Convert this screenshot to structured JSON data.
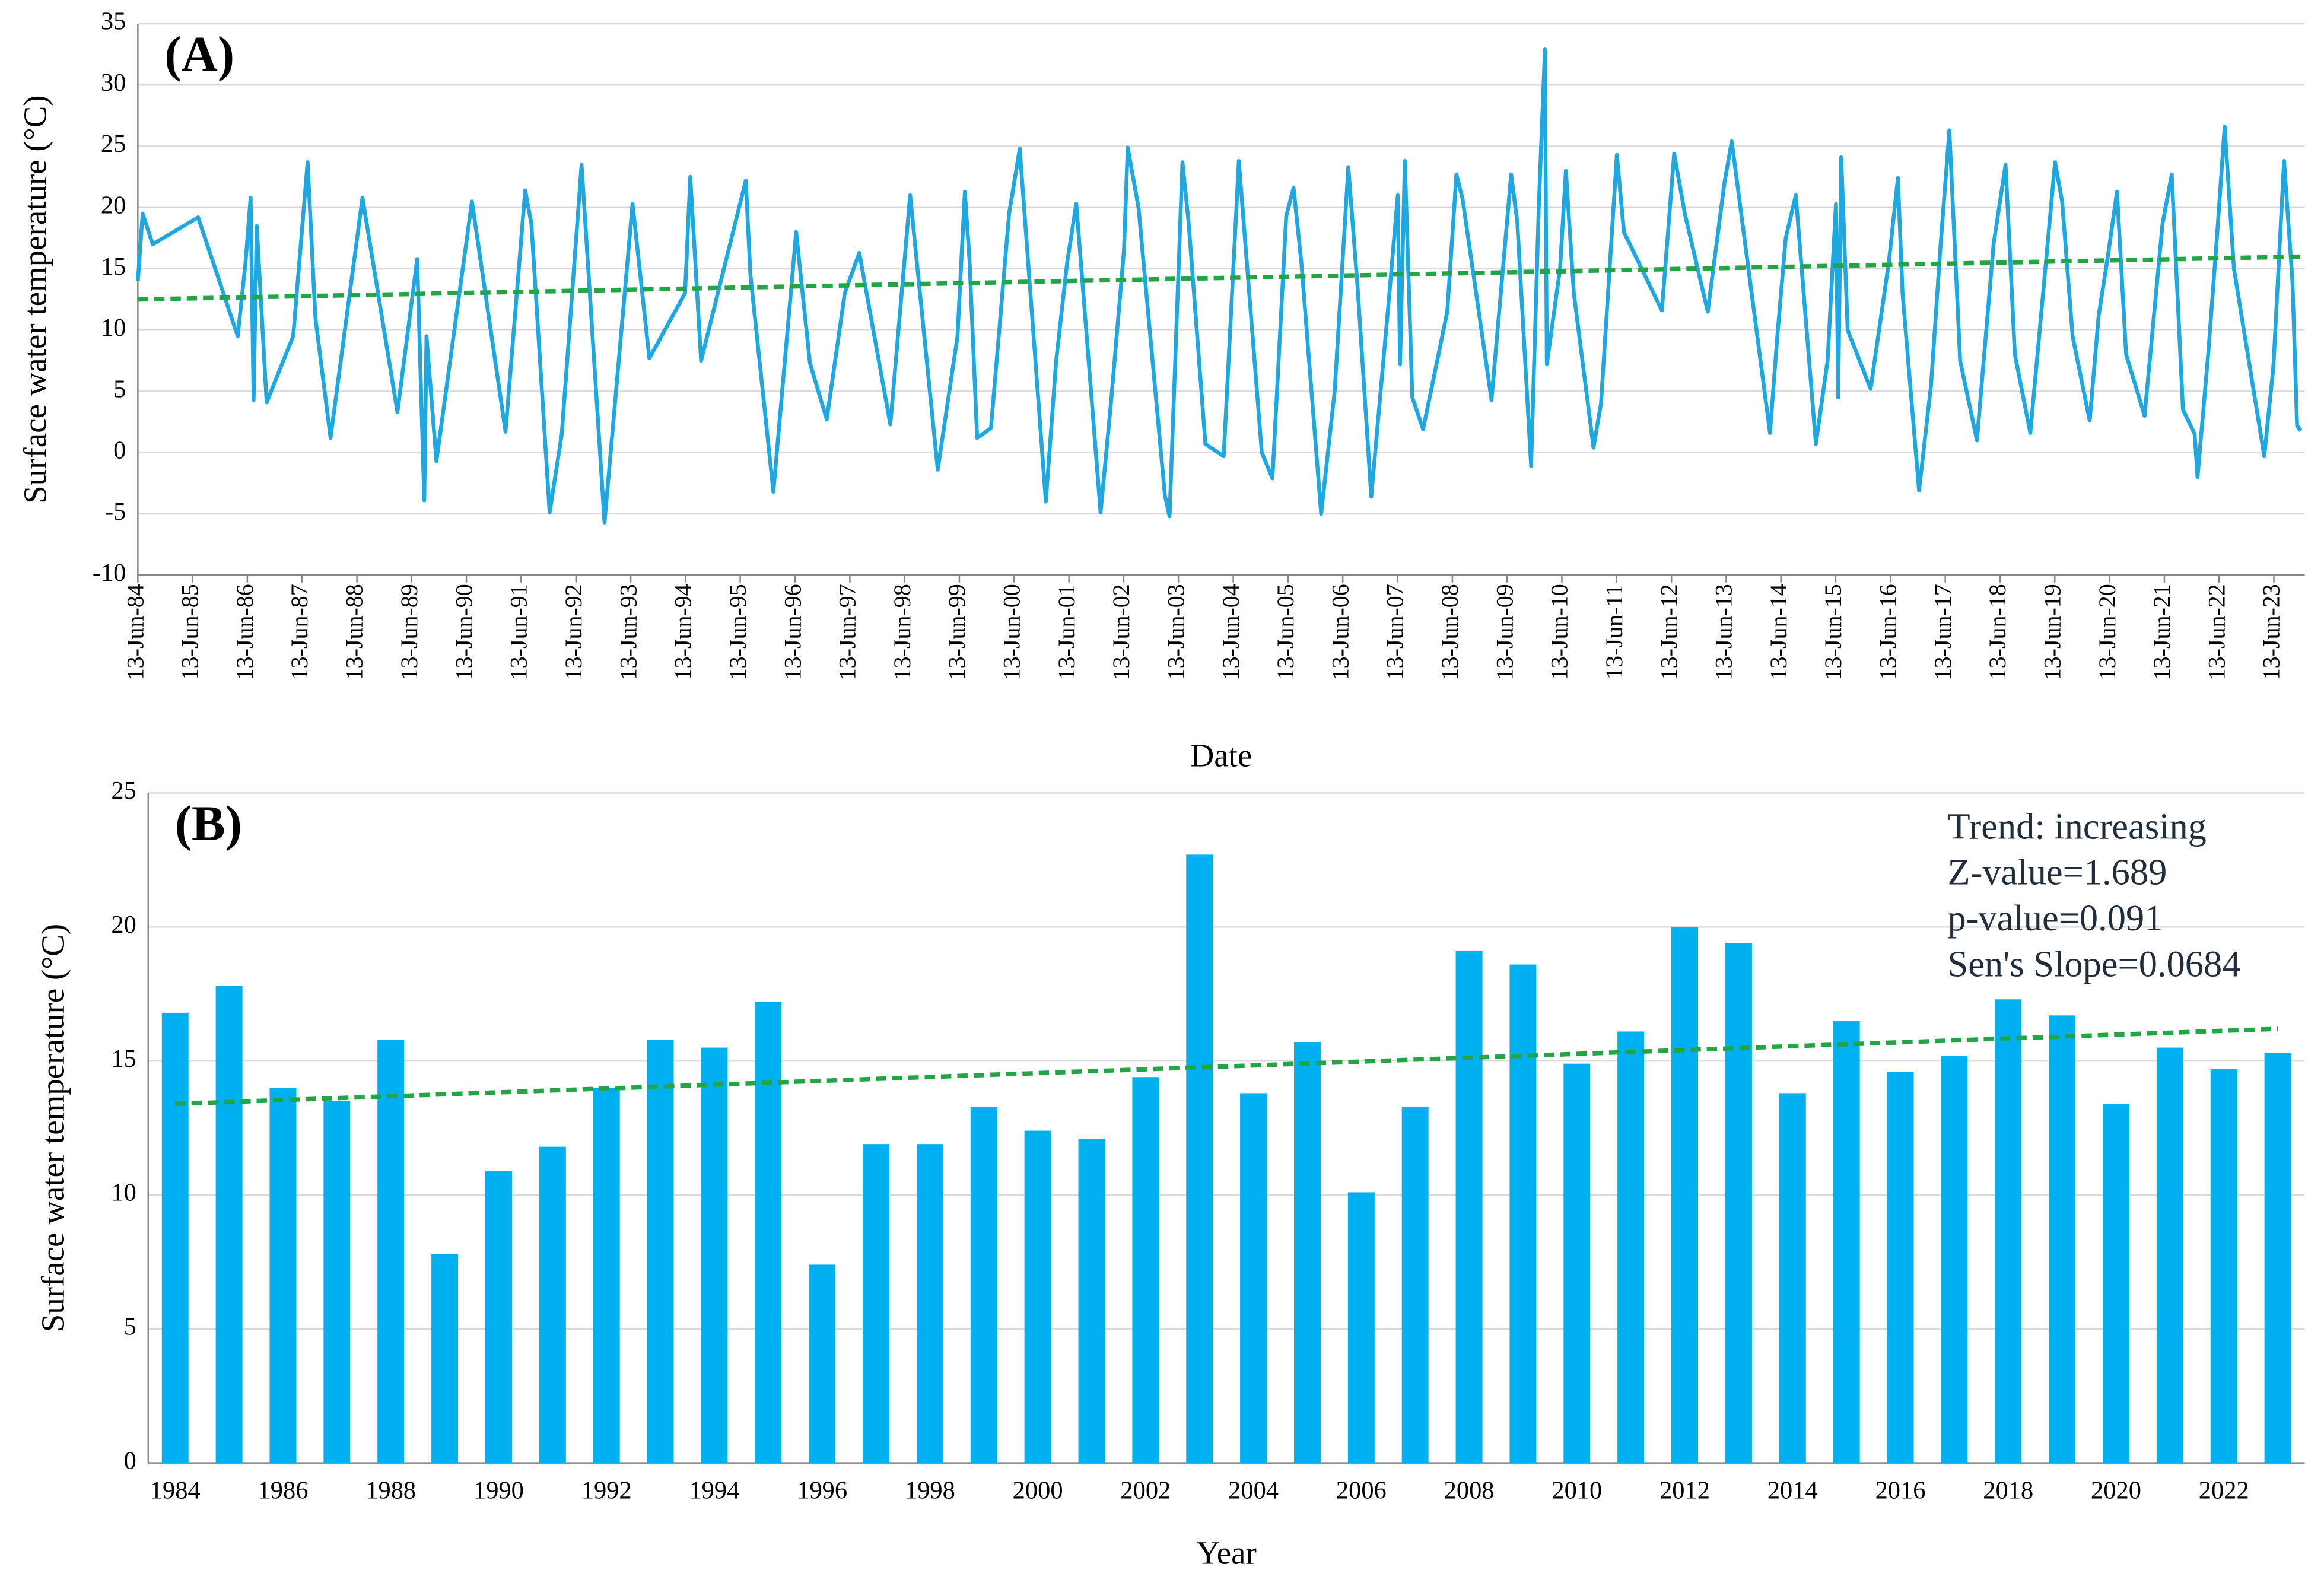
{
  "chart_data": [
    {
      "type": "line",
      "panel_label": "(A)",
      "x_label": "Date",
      "y_label": "Surface water temperature (°C)",
      "x": [
        "1984-06-13",
        "1984-07-15",
        "1984-09-20",
        "1985-07-20",
        "1986-04-10",
        "1986-06-01",
        "1986-07-05",
        "1986-07-25",
        "1986-08-15",
        "1986-10-20",
        "1987-04-15",
        "1987-07-20",
        "1987-09-10",
        "1987-12-20",
        "1988-07-20",
        "1989-03-10",
        "1989-07-20",
        "1989-09-05",
        "1989-09-20",
        "1989-11-25",
        "1990-07-20",
        "1991-03-01",
        "1991-07-10",
        "1991-08-20",
        "1991-12-20",
        "1992-03-10",
        "1992-07-20",
        "1992-12-20",
        "1993-06-25",
        "1993-10-15",
        "1994-06-10",
        "1994-07-15",
        "1994-09-25",
        "1995-07-20",
        "1995-08-20",
        "1996-01-20",
        "1996-06-20",
        "1996-09-20",
        "1997-01-10",
        "1997-05-10",
        "1997-08-15",
        "1998-03-10",
        "1998-07-20",
        "1999-01-20",
        "1999-06-01",
        "1999-07-20",
        "1999-08-20",
        "1999-10-10",
        "2000-01-10",
        "2000-05-10",
        "2000-07-20",
        "2001-01-10",
        "2001-03-20",
        "2001-06-01",
        "2001-08-01",
        "2002-01-10",
        "2002-03-20",
        "2002-06-15",
        "2002-07-10",
        "2002-09-20",
        "2003-03-15",
        "2003-04-15",
        "2003-07-10",
        "2003-08-20",
        "2003-12-10",
        "2004-04-10",
        "2004-07-20",
        "2004-12-20",
        "2005-03-01",
        "2005-06-01",
        "2005-07-20",
        "2005-09-10",
        "2006-01-20",
        "2006-04-20",
        "2006-07-20",
        "2006-09-20",
        "2006-12-20",
        "2007-04-20",
        "2007-06-15",
        "2007-06-30",
        "2007-08-01",
        "2007-09-20",
        "2007-12-01",
        "2008-05-10",
        "2008-07-10",
        "2008-08-20",
        "2009-03-01",
        "2009-07-10",
        "2009-08-20",
        "2009-11-20",
        "2010-01-10",
        "2010-02-20",
        "2010-03-05",
        "2010-06-01",
        "2010-07-10",
        "2010-09-01",
        "2011-01-10",
        "2011-03-01",
        "2011-06-15",
        "2011-08-01",
        "2012-04-10",
        "2012-07-01",
        "2012-09-10",
        "2013-02-10",
        "2013-06-01",
        "2013-07-20",
        "2014-04-01",
        "2014-05-20",
        "2014-07-15",
        "2014-09-20",
        "2015-02-01",
        "2015-04-20",
        "2015-06-15",
        "2015-06-30",
        "2015-07-20",
        "2015-09-01",
        "2016-02-01",
        "2016-06-01",
        "2016-08-01",
        "2016-09-01",
        "2016-12-20",
        "2017-03-10",
        "2017-05-10",
        "2017-07-10",
        "2017-09-20",
        "2018-01-10",
        "2018-05-01",
        "2018-07-20",
        "2018-09-20",
        "2019-01-01",
        "2019-06-15",
        "2019-08-01",
        "2019-10-10",
        "2020-02-01",
        "2020-04-01",
        "2020-06-01",
        "2020-08-01",
        "2020-10-01",
        "2021-02-01",
        "2021-06-01",
        "2021-08-01",
        "2021-10-15",
        "2022-01-01",
        "2022-01-20",
        "2022-04-01",
        "2022-06-01",
        "2022-07-20",
        "2022-09-20",
        "2023-04-10",
        "2023-06-10",
        "2023-08-20",
        "2023-10-15",
        "2023-11-15",
        "2023-12-10"
      ],
      "series": [
        {
          "color": "#1ea7e1",
          "values": [
            14,
            19.5,
            17,
            19.2,
            9.5,
            15.5,
            20.8,
            4.3,
            18.5,
            4.1,
            9.5,
            23.7,
            11,
            1.2,
            20.8,
            3.3,
            15.8,
            -3.9,
            9.5,
            -0.7,
            20.5,
            1.7,
            21.4,
            18.7,
            -4.9,
            1.5,
            23.5,
            -5.7,
            20.3,
            7.7,
            13,
            22.5,
            7.5,
            22.2,
            14.5,
            -3.2,
            18,
            7.3,
            2.7,
            13,
            16.3,
            2.3,
            21,
            -1.4,
            9.5,
            21.3,
            15.7,
            1.2,
            2,
            19.5,
            24.8,
            -4,
            7.5,
            15.5,
            20.3,
            -4.9,
            4,
            16.5,
            24.9,
            20,
            -3.5,
            -5.2,
            23.7,
            18.8,
            0.7,
            -0.3,
            23.8,
            0,
            -2.1,
            19.3,
            21.6,
            15.5,
            -5,
            5,
            23.3,
            13.5,
            -3.6,
            13,
            21,
            7.2,
            23.8,
            4.5,
            1.9,
            11.5,
            22.7,
            20.7,
            4.3,
            22.7,
            18.8,
            -1.1,
            20,
            32.9,
            7.2,
            15,
            23,
            13,
            0.4,
            4,
            24.3,
            18,
            11.6,
            24.4,
            19.5,
            11.5,
            22,
            25.4,
            1.6,
            9.5,
            17.5,
            21,
            0.7,
            7.5,
            20.3,
            4.5,
            24.1,
            10,
            5.2,
            15.5,
            22.4,
            13,
            -3.1,
            5.5,
            16.5,
            26.3,
            7.5,
            1,
            17,
            23.5,
            8,
            1.6,
            23.7,
            20.5,
            9.5,
            2.6,
            11.2,
            16,
            21.3,
            8,
            3,
            18.7,
            22.7,
            3.5,
            1.5,
            -2,
            8,
            18,
            26.6,
            15,
            -0.3,
            7,
            23.8,
            14,
            2.2,
            1.8
          ]
        }
      ],
      "trend": {
        "color": "#22a645",
        "x": [
          "1984-06-13",
          "2024-01-05"
        ],
        "values": [
          12.5,
          16
        ]
      },
      "xlim": [
        "1984-06-13",
        "2024-01-05"
      ],
      "xticks": [
        {
          "value": "1984-06-13",
          "label": "13-Jun-84"
        },
        {
          "value": "1985-06-13",
          "label": "13-Jun-85"
        },
        {
          "value": "1986-06-13",
          "label": "13-Jun-86"
        },
        {
          "value": "1987-06-13",
          "label": "13-Jun-87"
        },
        {
          "value": "1988-06-13",
          "label": "13-Jun-88"
        },
        {
          "value": "1989-06-13",
          "label": "13-Jun-89"
        },
        {
          "value": "1990-06-13",
          "label": "13-Jun-90"
        },
        {
          "value": "1991-06-13",
          "label": "13-Jun-91"
        },
        {
          "value": "1992-06-13",
          "label": "13-Jun-92"
        },
        {
          "value": "1993-06-13",
          "label": "13-Jun-93"
        },
        {
          "value": "1994-06-13",
          "label": "13-Jun-94"
        },
        {
          "value": "1995-06-13",
          "label": "13-Jun-95"
        },
        {
          "value": "1996-06-13",
          "label": "13-Jun-96"
        },
        {
          "value": "1997-06-13",
          "label": "13-Jun-97"
        },
        {
          "value": "1998-06-13",
          "label": "13-Jun-98"
        },
        {
          "value": "1999-06-13",
          "label": "13-Jun-99"
        },
        {
          "value": "2000-06-13",
          "label": "13-Jun-00"
        },
        {
          "value": "2001-06-13",
          "label": "13-Jun-01"
        },
        {
          "value": "2002-06-13",
          "label": "13-Jun-02"
        },
        {
          "value": "2003-06-13",
          "label": "13-Jun-03"
        },
        {
          "value": "2004-06-13",
          "label": "13-Jun-04"
        },
        {
          "value": "2005-06-13",
          "label": "13-Jun-05"
        },
        {
          "value": "2006-06-13",
          "label": "13-Jun-06"
        },
        {
          "value": "2007-06-13",
          "label": "13-Jun-07"
        },
        {
          "value": "2008-06-13",
          "label": "13-Jun-08"
        },
        {
          "value": "2009-06-13",
          "label": "13-Jun-09"
        },
        {
          "value": "2010-06-13",
          "label": "13-Jun-10"
        },
        {
          "value": "2011-06-13",
          "label": "13-Jun-11"
        },
        {
          "value": "2012-06-13",
          "label": "13-Jun-12"
        },
        {
          "value": "2013-06-13",
          "label": "13-Jun-13"
        },
        {
          "value": "2014-06-13",
          "label": "13-Jun-14"
        },
        {
          "value": "2015-06-13",
          "label": "13-Jun-15"
        },
        {
          "value": "2016-06-13",
          "label": "13-Jun-16"
        },
        {
          "value": "2017-06-13",
          "label": "13-Jun-17"
        },
        {
          "value": "2018-06-13",
          "label": "13-Jun-18"
        },
        {
          "value": "2019-06-13",
          "label": "13-Jun-19"
        },
        {
          "value": "2020-06-13",
          "label": "13-Jun-20"
        },
        {
          "value": "2021-06-13",
          "label": "13-Jun-21"
        },
        {
          "value": "2022-06-13",
          "label": "13-Jun-22"
        },
        {
          "value": "2023-06-13",
          "label": "13-Jun-23"
        }
      ],
      "ylim": [
        -10,
        35
      ],
      "yticks": [
        -10,
        -5,
        0,
        5,
        10,
        15,
        20,
        25,
        30,
        35
      ],
      "grid": true
    },
    {
      "type": "bar",
      "panel_label": "(B)",
      "x_label": "Year",
      "y_label": "Surface water temperature (°C)",
      "categories": [
        "1984",
        null,
        "1986",
        null,
        "1988",
        null,
        "1990",
        null,
        "1992",
        null,
        "1994",
        null,
        "1996",
        null,
        "1998",
        null,
        "2000",
        null,
        "2002",
        null,
        "2004",
        null,
        "2006",
        null,
        "2008",
        null,
        "2010",
        null,
        "2012",
        null,
        "2014",
        null,
        "2016",
        null,
        "2018",
        null,
        "2020",
        null,
        "2022",
        null
      ],
      "values": [
        16.8,
        17.8,
        14,
        13.5,
        15.8,
        7.8,
        10.9,
        11.8,
        14,
        15.8,
        15.5,
        17.2,
        7.4,
        11.9,
        11.9,
        13.3,
        12.4,
        12.1,
        14.4,
        22.7,
        13.8,
        15.7,
        10.1,
        13.3,
        19.1,
        18.6,
        14.9,
        16.1,
        20,
        19.4,
        13.8,
        16.5,
        14.6,
        15.2,
        17.3,
        16.7,
        13.4,
        15.5,
        14.7,
        15.3
      ],
      "color": "#00b0f0",
      "trend": {
        "color": "#22a645",
        "values": [
          13.4,
          16.2
        ]
      },
      "annotations": [
        "Trend: increasing",
        "Z-value=1.689",
        "p-value=0.091",
        "Sen's Slope=0.0684"
      ],
      "ylim": [
        0,
        25
      ],
      "yticks": [
        0,
        5,
        10,
        15,
        20,
        25
      ],
      "grid": true
    }
  ]
}
